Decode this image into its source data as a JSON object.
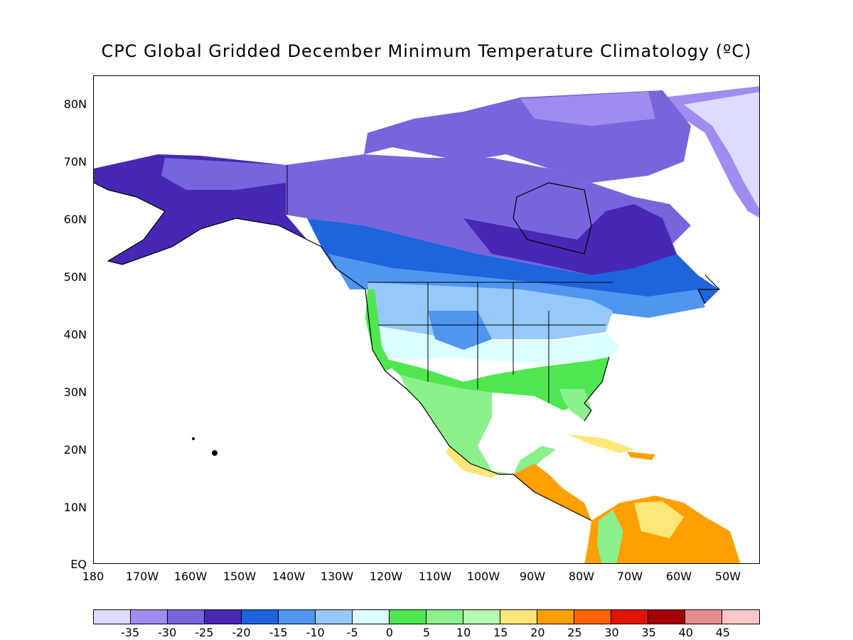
{
  "title": "CPC Global Gridded December Minimum Temperature Climatology (ºC)",
  "lat_labels": [
    "80N",
    "70N",
    "60N",
    "50N",
    "40N",
    "30N",
    "20N",
    "10N",
    "EQ"
  ],
  "lon_labels": [
    "180",
    "170W",
    "160W",
    "150W",
    "140W",
    "130W",
    "120W",
    "110W",
    "100W",
    "90W",
    "80W",
    "70W",
    "60W",
    "50W"
  ],
  "colorbar": {
    "colors": [
      "#dcdcff",
      "#a08cf0",
      "#7864dc",
      "#4628b4",
      "#1e64dc",
      "#5096f0",
      "#96c8fa",
      "#dcffff",
      "#50e650",
      "#8cf08c",
      "#b4fab4",
      "#ffe678",
      "#ffa000",
      "#ff6400",
      "#e11400",
      "#a50000",
      "#e68c8c",
      "#ffc8c8"
    ],
    "labels": [
      "-35",
      "-30",
      "-25",
      "-20",
      "-15",
      "-10",
      "-5",
      "0",
      "5",
      "10",
      "15",
      "20",
      "25",
      "30",
      "35",
      "40",
      "45"
    ]
  },
  "map": {
    "region_colors": {
      "arctic": "#dcdcff",
      "very_cold": "#a08cf0",
      "cold": "#7864dc",
      "colder_core": "#4628b4",
      "cool": "#1e64dc",
      "mild_cool": "#5096f0",
      "mild": "#96c8fa",
      "near_zero": "#dcffff",
      "warm_5": "#50e650",
      "warm_10": "#8cf08c",
      "warm_15": "#b4fab4",
      "hot_20": "#ffe678",
      "hot_25": "#ffa000"
    }
  }
}
